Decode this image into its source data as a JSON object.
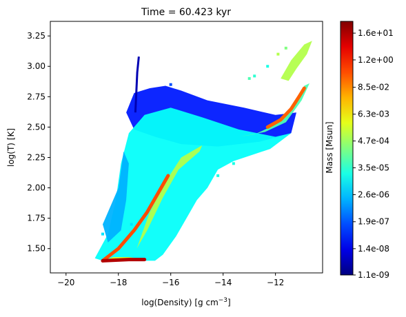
{
  "chart_data": {
    "type": "heatmap",
    "title": "Time = 60.423 kyr",
    "xlabel": "log(Density) [g cm",
    "xlabel_sup": "−3",
    "xlabel_end": "]",
    "ylabel": "log(T) [K]",
    "xlim": [
      -20.6,
      -10.2
    ],
    "ylim": [
      1.3,
      3.37
    ],
    "x_ticks": [
      {
        "value": -20,
        "label": "−20"
      },
      {
        "value": -18,
        "label": "−18"
      },
      {
        "value": -16,
        "label": "−16"
      },
      {
        "value": -14,
        "label": "−14"
      },
      {
        "value": -12,
        "label": "−12"
      }
    ],
    "y_ticks": [
      {
        "value": 1.5,
        "label": "1.50"
      },
      {
        "value": 1.75,
        "label": "1.75"
      },
      {
        "value": 2.0,
        "label": "2.00"
      },
      {
        "value": 2.25,
        "label": "2.25"
      },
      {
        "value": 2.5,
        "label": "2.50"
      },
      {
        "value": 2.75,
        "label": "2.75"
      },
      {
        "value": 3.0,
        "label": "3.00"
      },
      {
        "value": 3.25,
        "label": "3.25"
      }
    ],
    "colorbar": {
      "label": "Mass [Msun]",
      "colormap": "jet",
      "scale": "log",
      "range": [
        1.1e-09,
        50
      ],
      "ticks": [
        {
          "value": 1.1e-09,
          "label": "1.1e-09"
        },
        {
          "value": 1.4e-08,
          "label": "1.4e-08"
        },
        {
          "value": 1.9e-07,
          "label": "1.9e-07"
        },
        {
          "value": 2.6e-06,
          "label": "2.6e-06"
        },
        {
          "value": 3.5e-05,
          "label": "3.5e-05"
        },
        {
          "value": 0.00047,
          "label": "4.7e-04"
        },
        {
          "value": 0.0063,
          "label": "6.3e-03"
        },
        {
          "value": 0.085,
          "label": "8.5e-02"
        },
        {
          "value": 1.2,
          "label": "1.2e+00"
        },
        {
          "value": 16,
          "label": "1.6e+01"
        }
      ]
    },
    "regions": [
      {
        "name": "upper-envelope",
        "color_level": 0.15,
        "polygon": [
          [
            -17.4,
            2.78
          ],
          [
            -16.8,
            2.82
          ],
          [
            -16.2,
            2.84
          ],
          [
            -15.6,
            2.8
          ],
          [
            -14.6,
            2.72
          ],
          [
            -13.2,
            2.66
          ],
          [
            -12.0,
            2.6
          ],
          [
            -11.2,
            2.62
          ],
          [
            -11.4,
            2.45
          ],
          [
            -12.6,
            2.38
          ],
          [
            -14.2,
            2.34
          ],
          [
            -15.6,
            2.36
          ],
          [
            -16.6,
            2.42
          ],
          [
            -17.4,
            2.48
          ],
          [
            -17.7,
            2.62
          ]
        ]
      },
      {
        "name": "main-body",
        "color_level": 0.38,
        "polygon": [
          [
            -18.9,
            1.42
          ],
          [
            -18.4,
            1.62
          ],
          [
            -18.1,
            1.9
          ],
          [
            -17.9,
            2.2
          ],
          [
            -17.6,
            2.45
          ],
          [
            -17.0,
            2.6
          ],
          [
            -16.0,
            2.66
          ],
          [
            -14.8,
            2.58
          ],
          [
            -13.4,
            2.48
          ],
          [
            -12.0,
            2.42
          ],
          [
            -11.4,
            2.45
          ],
          [
            -12.2,
            2.32
          ],
          [
            -13.6,
            2.22
          ],
          [
            -14.2,
            2.15
          ],
          [
            -14.6,
            2.0
          ],
          [
            -15.0,
            1.9
          ],
          [
            -15.4,
            1.75
          ],
          [
            -15.8,
            1.6
          ],
          [
            -16.3,
            1.45
          ],
          [
            -16.6,
            1.4
          ],
          [
            -18.6,
            1.4
          ]
        ]
      },
      {
        "name": "left-wing",
        "color_level": 0.3,
        "polygon": [
          [
            -18.4,
            1.55
          ],
          [
            -18.6,
            1.7
          ],
          [
            -18.0,
            2.0
          ],
          [
            -17.8,
            2.3
          ],
          [
            -17.6,
            2.2
          ],
          [
            -17.7,
            1.9
          ],
          [
            -17.9,
            1.65
          ]
        ]
      },
      {
        "name": "bottom-band",
        "color_level": 0.6,
        "polygon": [
          [
            -18.6,
            1.4
          ],
          [
            -17.4,
            1.4
          ],
          [
            -16.9,
            1.41
          ],
          [
            -17.6,
            1.43
          ],
          [
            -18.2,
            1.43
          ]
        ]
      },
      {
        "name": "dense-tail",
        "color_level": 0.45,
        "polygon": [
          [
            -13.4,
            2.42
          ],
          [
            -12.4,
            2.46
          ],
          [
            -11.6,
            2.54
          ],
          [
            -11.0,
            2.72
          ],
          [
            -10.7,
            2.86
          ],
          [
            -10.9,
            2.84
          ],
          [
            -11.3,
            2.66
          ],
          [
            -12.0,
            2.52
          ],
          [
            -12.8,
            2.44
          ]
        ]
      },
      {
        "name": "high-density-top",
        "color_level": 0.55,
        "polygon": [
          [
            -11.8,
            2.9
          ],
          [
            -11.4,
            3.05
          ],
          [
            -10.9,
            3.18
          ],
          [
            -10.6,
            3.21
          ],
          [
            -10.8,
            3.1
          ],
          [
            -11.2,
            2.98
          ],
          [
            -11.5,
            2.88
          ]
        ]
      },
      {
        "name": "mid-ridge",
        "color_level": 0.55,
        "polygon": [
          [
            -17.3,
            1.5
          ],
          [
            -16.8,
            1.8
          ],
          [
            -16.2,
            2.05
          ],
          [
            -15.6,
            2.25
          ],
          [
            -14.8,
            2.35
          ],
          [
            -14.9,
            2.3
          ],
          [
            -15.7,
            2.15
          ],
          [
            -16.3,
            1.92
          ],
          [
            -16.9,
            1.65
          ]
        ]
      }
    ],
    "ridges": [
      {
        "name": "cold-ridge",
        "color_level": 0.8,
        "points": [
          [
            -18.6,
            1.4
          ],
          [
            -18.0,
            1.5
          ],
          [
            -17.4,
            1.65
          ],
          [
            -16.9,
            1.8
          ],
          [
            -16.5,
            1.95
          ],
          [
            -16.1,
            2.1
          ]
        ]
      },
      {
        "name": "hot-ridge",
        "color_level": 0.78,
        "points": [
          [
            -12.3,
            2.5
          ],
          [
            -11.8,
            2.56
          ],
          [
            -11.4,
            2.65
          ],
          [
            -11.1,
            2.75
          ],
          [
            -10.9,
            2.82
          ]
        ]
      },
      {
        "name": "bottom-ridge",
        "color_level": 0.95,
        "points": [
          [
            -18.6,
            1.4
          ],
          [
            -17.6,
            1.41
          ],
          [
            -17.0,
            1.41
          ]
        ]
      }
    ],
    "spike": {
      "name": "low-mass-spike",
      "color_level": 0.05,
      "points": [
        [
          -17.35,
          2.62
        ],
        [
          -17.28,
          2.95
        ],
        [
          -17.22,
          3.08
        ]
      ]
    },
    "scatter": [
      {
        "x": -13.0,
        "y": 2.9,
        "level": 0.45
      },
      {
        "x": -12.8,
        "y": 2.92,
        "level": 0.42
      },
      {
        "x": -11.9,
        "y": 3.1,
        "level": 0.55
      },
      {
        "x": -11.6,
        "y": 3.15,
        "level": 0.5
      },
      {
        "x": -12.3,
        "y": 3.0,
        "level": 0.4
      },
      {
        "x": -17.5,
        "y": 1.7,
        "level": 0.35
      },
      {
        "x": -18.6,
        "y": 1.62,
        "level": 0.35
      },
      {
        "x": -16.0,
        "y": 2.85,
        "level": 0.2
      },
      {
        "x": -14.2,
        "y": 2.1,
        "level": 0.4
      },
      {
        "x": -13.6,
        "y": 2.2,
        "level": 0.4
      }
    ]
  }
}
